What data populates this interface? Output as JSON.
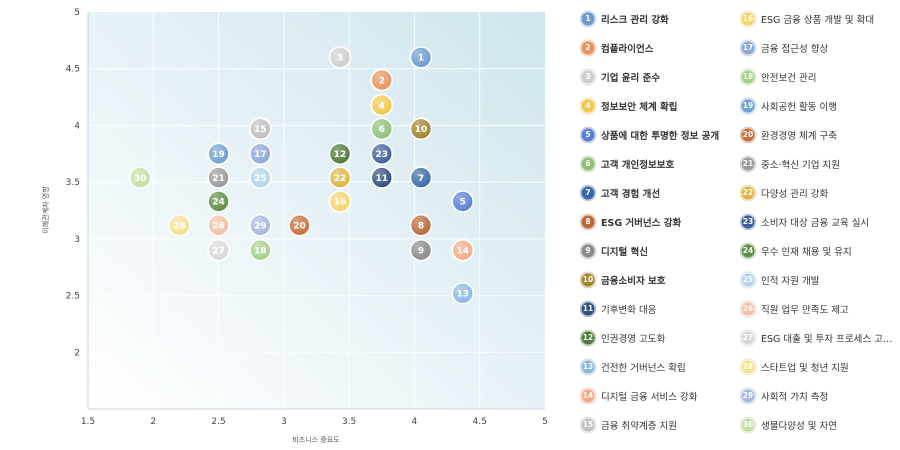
{
  "chart_data": {
    "type": "scatter",
    "xlabel": "비즈니스 중요도",
    "ylabel": "이해관계자 영향",
    "xlim": [
      1.5,
      5
    ],
    "ylim": [
      1.5,
      5
    ],
    "x_ticks": [
      "1.5",
      "2",
      "2.5",
      "3",
      "3.5",
      "4",
      "4.5",
      "5"
    ],
    "y_ticks": [
      "2",
      "2.5",
      "3",
      "3.5",
      "4",
      "4.5",
      "5"
    ],
    "grid": true,
    "legend_position": "right",
    "points": [
      {
        "id": "1",
        "label": "리스크 관리 강화",
        "x": 4.05,
        "y": 4.6,
        "color": "#6c9bd2",
        "bold": true
      },
      {
        "id": "2",
        "label": "컴플라이언스",
        "x": 3.75,
        "y": 4.4,
        "color": "#e8955a",
        "bold": true
      },
      {
        "id": "3",
        "label": "기업 윤리 준수",
        "x": 3.43,
        "y": 4.6,
        "color": "#cfcfcf",
        "bold": true
      },
      {
        "id": "4",
        "label": "정보보안 체계 확립",
        "x": 3.75,
        "y": 4.18,
        "color": "#f2c94c",
        "bold": true
      },
      {
        "id": "5",
        "label": "상품에 대한 투명한 정보 공개",
        "x": 4.37,
        "y": 3.33,
        "color": "#5a7fd6",
        "bold": true
      },
      {
        "id": "6",
        "label": "고객 개인정보보호",
        "x": 3.75,
        "y": 3.97,
        "color": "#8fc07a",
        "bold": true
      },
      {
        "id": "7",
        "label": "고객 경험 개선",
        "x": 4.05,
        "y": 3.54,
        "color": "#3a6aa8",
        "bold": true
      },
      {
        "id": "8",
        "label": "ESG 거버넌스 강화",
        "x": 4.05,
        "y": 3.12,
        "color": "#b86a3a",
        "bold": true
      },
      {
        "id": "9",
        "label": "디지털 혁신",
        "x": 4.05,
        "y": 2.9,
        "color": "#8a8a8a",
        "bold": true
      },
      {
        "id": "10",
        "label": "금융소비자 보호",
        "x": 4.05,
        "y": 3.97,
        "color": "#a0842c",
        "bold": true
      },
      {
        "id": "11",
        "label": "기후변화 대응",
        "x": 3.75,
        "y": 3.54,
        "color": "#2f4f7f",
        "bold": false
      },
      {
        "id": "12",
        "label": "인권경영 고도화",
        "x": 3.43,
        "y": 3.75,
        "color": "#4f7a3c",
        "bold": false
      },
      {
        "id": "13",
        "label": "건전한 거버넌스 확립",
        "x": 4.37,
        "y": 2.52,
        "color": "#8ab8e0",
        "bold": false
      },
      {
        "id": "14",
        "label": "디지털 금융 서비스 강화",
        "x": 4.37,
        "y": 2.9,
        "color": "#f2ab84",
        "bold": false
      },
      {
        "id": "15",
        "label": "금융 취약계층 지원",
        "x": 2.82,
        "y": 3.97,
        "color": "#bfbfbf",
        "bold": false
      },
      {
        "id": "16",
        "label": "ESG 금융 상품 개발 및 확대",
        "x": 3.43,
        "y": 3.33,
        "color": "#f5d36a",
        "bold": false
      },
      {
        "id": "17",
        "label": "금융 접근성 향상",
        "x": 2.82,
        "y": 3.75,
        "color": "#8aa7d9",
        "bold": false
      },
      {
        "id": "18",
        "label": "안전보건 관리",
        "x": 2.82,
        "y": 2.9,
        "color": "#a6cf8a",
        "bold": false
      },
      {
        "id": "19",
        "label": "사회공헌 활동 이행",
        "x": 2.5,
        "y": 3.75,
        "color": "#6f9fd0",
        "bold": false
      },
      {
        "id": "20",
        "label": "환경경영 체계 구축",
        "x": 3.12,
        "y": 3.12,
        "color": "#c7703a",
        "bold": false
      },
      {
        "id": "21",
        "label": "중소·혁신 기업 지원",
        "x": 2.5,
        "y": 3.54,
        "color": "#9a9a9a",
        "bold": false
      },
      {
        "id": "22",
        "label": "다양성 관리 강화",
        "x": 3.43,
        "y": 3.54,
        "color": "#e0b542",
        "bold": false
      },
      {
        "id": "23",
        "label": "소비자 대상 금융 교육 실시",
        "x": 3.75,
        "y": 3.75,
        "color": "#3f5f9f",
        "bold": false
      },
      {
        "id": "24",
        "label": "우수 인재 채용 및 유지",
        "x": 2.5,
        "y": 3.33,
        "color": "#5f8f45",
        "bold": false
      },
      {
        "id": "25",
        "label": "인적 자원 개발",
        "x": 2.82,
        "y": 3.54,
        "color": "#b3d3ef",
        "bold": false
      },
      {
        "id": "26",
        "label": "직원 업무 만족도 제고",
        "x": 2.5,
        "y": 3.12,
        "color": "#f3c0a3",
        "bold": false
      },
      {
        "id": "27",
        "label": "ESG 대출 및 투자 프로세스 고도화",
        "x": 2.5,
        "y": 2.9,
        "color": "#d9d9d9",
        "bold": false
      },
      {
        "id": "28",
        "label": "스타트업 및 청년 지원",
        "x": 2.2,
        "y": 3.12,
        "color": "#f6df8f",
        "bold": false
      },
      {
        "id": "29",
        "label": "사회적 가치 측정",
        "x": 2.82,
        "y": 3.12,
        "color": "#a7b7e0",
        "bold": false
      },
      {
        "id": "30",
        "label": "생물다양성 및 자연",
        "x": 1.9,
        "y": 3.54,
        "color": "#c4dea2",
        "bold": false
      }
    ]
  }
}
